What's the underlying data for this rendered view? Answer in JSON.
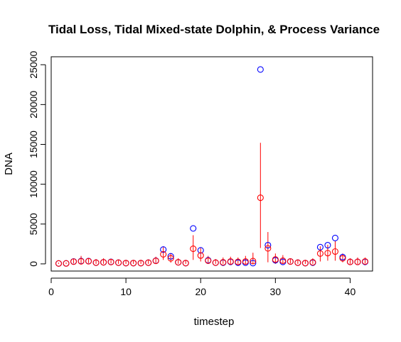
{
  "chart_data": {
    "type": "scatter",
    "title": "Tidal Loss, Tidal Mixed-state Dolphin, & Process Variance",
    "xlabel": "timestep",
    "ylabel": "DNA",
    "xlim": [
      0,
      43
    ],
    "ylim": [
      -900,
      26000
    ],
    "x_ticks": [
      "0",
      "10",
      "20",
      "30",
      "40"
    ],
    "y_ticks": [
      "0",
      "5000",
      "10000",
      "15000",
      "20000",
      "25000"
    ],
    "grid": false,
    "colors": {
      "observed": "#0000ff",
      "estimate": "#ff0000",
      "axis": "#000000"
    },
    "series": [
      {
        "marker": "open-circle",
        "color": "#0000ff",
        "x": [
          1,
          2,
          3,
          4,
          5,
          6,
          7,
          8,
          9,
          10,
          11,
          12,
          13,
          14,
          15,
          16,
          17,
          18,
          19,
          20,
          21,
          22,
          23,
          24,
          25,
          26,
          27,
          28,
          29,
          30,
          31,
          32,
          33,
          34,
          35,
          36,
          37,
          38,
          39,
          40,
          41,
          42
        ],
        "y": [
          50,
          60,
          300,
          350,
          350,
          150,
          200,
          250,
          150,
          100,
          100,
          100,
          150,
          400,
          1800,
          950,
          200,
          100,
          4450,
          1700,
          450,
          150,
          150,
          250,
          150,
          150,
          100,
          24400,
          2350,
          450,
          250,
          300,
          150,
          100,
          150,
          2100,
          2350,
          3250,
          850,
          250,
          250,
          250
        ]
      },
      {
        "marker": "open-circle-with-interval",
        "color": "#ff0000",
        "x": [
          1,
          2,
          3,
          4,
          5,
          6,
          7,
          8,
          9,
          10,
          11,
          12,
          13,
          14,
          15,
          16,
          17,
          18,
          19,
          20,
          21,
          22,
          23,
          24,
          25,
          26,
          27,
          28,
          29,
          30,
          31,
          32,
          33,
          34,
          35,
          36,
          37,
          38,
          39,
          40,
          41,
          42
        ],
        "y": [
          50,
          60,
          280,
          320,
          330,
          150,
          200,
          230,
          150,
          100,
          100,
          100,
          150,
          380,
          1200,
          700,
          200,
          100,
          1900,
          1050,
          400,
          150,
          200,
          300,
          250,
          300,
          350,
          8300,
          1950,
          550,
          400,
          300,
          150,
          100,
          200,
          1300,
          1350,
          1550,
          700,
          250,
          250,
          300
        ],
        "lower": [
          0,
          0,
          50,
          0,
          100,
          0,
          0,
          50,
          0,
          0,
          0,
          0,
          0,
          100,
          500,
          150,
          0,
          0,
          500,
          300,
          0,
          0,
          0,
          0,
          0,
          0,
          0,
          2000,
          200,
          0,
          0,
          50,
          0,
          0,
          0,
          300,
          400,
          400,
          200,
          0,
          0,
          50
        ],
        "upper": [
          150,
          180,
          700,
          1000,
          700,
          600,
          700,
          650,
          500,
          400,
          400,
          400,
          550,
          900,
          2200,
          1300,
          700,
          500,
          3600,
          2000,
          1000,
          600,
          800,
          900,
          800,
          1000,
          1400,
          15200,
          4000,
          1300,
          1100,
          700,
          500,
          500,
          700,
          2200,
          2400,
          2900,
          1300,
          700,
          800,
          800
        ]
      }
    ]
  }
}
